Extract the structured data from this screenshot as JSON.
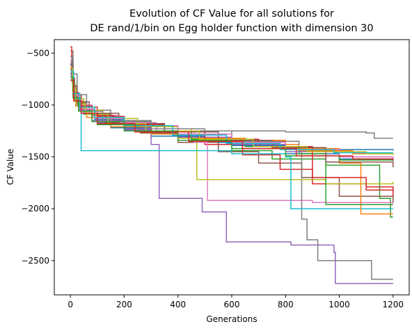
{
  "chart_data": {
    "type": "line",
    "title_line1": "Evolution of CF Value for all solutions for",
    "title_line2": "DE rand/1/bin on Egg holder function with dimension 30",
    "xlabel": "Generations",
    "ylabel": "CF Value",
    "xlim": [
      -60,
      1260
    ],
    "ylim": [
      -2830,
      -370
    ],
    "xticks": [
      0,
      200,
      400,
      600,
      800,
      1000,
      1200
    ],
    "yticks": [
      -2500,
      -2000,
      -1500,
      -1000,
      -500
    ],
    "grid": false,
    "series": [
      {
        "color": "#1f77b4",
        "points": [
          [
            0,
            -610
          ],
          [
            5,
            -760
          ],
          [
            12,
            -880
          ],
          [
            25,
            -1000
          ],
          [
            50,
            -1090
          ],
          [
            100,
            -1180
          ],
          [
            150,
            -1220
          ],
          [
            300,
            -1300
          ],
          [
            500,
            -1360
          ],
          [
            700,
            -1400
          ],
          [
            900,
            -1430
          ],
          [
            1200,
            -1440
          ]
        ]
      },
      {
        "color": "#ff7f0e",
        "points": [
          [
            0,
            -640
          ],
          [
            8,
            -820
          ],
          [
            20,
            -960
          ],
          [
            45,
            -1060
          ],
          [
            120,
            -1150
          ],
          [
            250,
            -1230
          ],
          [
            450,
            -1320
          ],
          [
            650,
            -1380
          ],
          [
            850,
            -1440
          ],
          [
            1050,
            -1470
          ],
          [
            1200,
            -1480
          ]
        ]
      },
      {
        "color": "#2ca02c",
        "points": [
          [
            0,
            -700
          ],
          [
            10,
            -880
          ],
          [
            30,
            -1000
          ],
          [
            60,
            -1090
          ],
          [
            150,
            -1160
          ],
          [
            300,
            -1260
          ],
          [
            450,
            -1350
          ],
          [
            600,
            -1440
          ],
          [
            750,
            -1520
          ],
          [
            950,
            -1580
          ],
          [
            1150,
            -1900
          ],
          [
            1190,
            -2080
          ],
          [
            1200,
            -2080
          ]
        ]
      },
      {
        "color": "#d62728",
        "points": [
          [
            0,
            -530
          ],
          [
            6,
            -740
          ],
          [
            15,
            -900
          ],
          [
            40,
            -1020
          ],
          [
            100,
            -1110
          ],
          [
            200,
            -1190
          ],
          [
            350,
            -1280
          ],
          [
            500,
            -1380
          ],
          [
            640,
            -1480
          ],
          [
            780,
            -1620
          ],
          [
            900,
            -1760
          ],
          [
            1100,
            -1820
          ],
          [
            1200,
            -1840
          ]
        ]
      },
      {
        "color": "#9467bd",
        "points": [
          [
            0,
            -600
          ],
          [
            10,
            -880
          ],
          [
            30,
            -1050
          ],
          [
            100,
            -1170
          ],
          [
            200,
            -1240
          ],
          [
            300,
            -1380
          ],
          [
            330,
            -1900
          ],
          [
            480,
            -1900
          ],
          [
            490,
            -2030
          ],
          [
            570,
            -2030
          ],
          [
            580,
            -2320
          ],
          [
            810,
            -2320
          ],
          [
            820,
            -2350
          ],
          [
            980,
            -2420
          ],
          [
            985,
            -2720
          ],
          [
            1200,
            -2720
          ]
        ]
      },
      {
        "color": "#8c564b",
        "points": [
          [
            0,
            -660
          ],
          [
            8,
            -840
          ],
          [
            25,
            -980
          ],
          [
            60,
            -1080
          ],
          [
            130,
            -1170
          ],
          [
            260,
            -1270
          ],
          [
            400,
            -1360
          ],
          [
            550,
            -1450
          ],
          [
            700,
            -1560
          ],
          [
            860,
            -1700
          ],
          [
            1000,
            -1880
          ],
          [
            1200,
            -1940
          ]
        ]
      },
      {
        "color": "#e377c2",
        "points": [
          [
            0,
            -690
          ],
          [
            10,
            -880
          ],
          [
            30,
            -1000
          ],
          [
            80,
            -1100
          ],
          [
            180,
            -1170
          ],
          [
            320,
            -1250
          ],
          [
            460,
            -1360
          ],
          [
            510,
            -1920
          ],
          [
            700,
            -1920
          ],
          [
            900,
            -1940
          ],
          [
            1200,
            -1950
          ]
        ]
      },
      {
        "color": "#7f7f7f",
        "points": [
          [
            0,
            -480
          ],
          [
            10,
            -700
          ],
          [
            25,
            -900
          ],
          [
            60,
            -1050
          ],
          [
            150,
            -1150
          ],
          [
            300,
            -1250
          ],
          [
            600,
            -1350
          ],
          [
            850,
            -1450
          ],
          [
            860,
            -2100
          ],
          [
            880,
            -2300
          ],
          [
            920,
            -2500
          ],
          [
            1100,
            -2500
          ],
          [
            1120,
            -2680
          ],
          [
            1200,
            -2680
          ]
        ]
      },
      {
        "color": "#bcbd22",
        "points": [
          [
            0,
            -620
          ],
          [
            8,
            -800
          ],
          [
            20,
            -940
          ],
          [
            50,
            -1050
          ],
          [
            120,
            -1130
          ],
          [
            250,
            -1210
          ],
          [
            400,
            -1320
          ],
          [
            470,
            -1720
          ],
          [
            700,
            -1720
          ],
          [
            950,
            -1760
          ],
          [
            1200,
            -1740
          ]
        ]
      },
      {
        "color": "#17becf",
        "points": [
          [
            0,
            -650
          ],
          [
            10,
            -820
          ],
          [
            25,
            -960
          ],
          [
            40,
            -1440
          ],
          [
            300,
            -1440
          ],
          [
            600,
            -1470
          ],
          [
            800,
            -1500
          ],
          [
            820,
            -2000
          ],
          [
            1000,
            -2000
          ],
          [
            1200,
            -2000
          ]
        ]
      },
      {
        "color": "#1f77b4",
        "points": [
          [
            0,
            -700
          ],
          [
            12,
            -900
          ],
          [
            35,
            -1040
          ],
          [
            90,
            -1140
          ],
          [
            200,
            -1230
          ],
          [
            400,
            -1310
          ],
          [
            600,
            -1390
          ],
          [
            800,
            -1470
          ],
          [
            1000,
            -1520
          ],
          [
            1200,
            -1530
          ]
        ]
      },
      {
        "color": "#ff7f0e",
        "points": [
          [
            0,
            -620
          ],
          [
            8,
            -860
          ],
          [
            20,
            -1010
          ],
          [
            60,
            -1120
          ],
          [
            150,
            -1210
          ],
          [
            300,
            -1280
          ],
          [
            500,
            -1340
          ],
          [
            800,
            -1420
          ],
          [
            1000,
            -1560
          ],
          [
            1080,
            -2050
          ],
          [
            1200,
            -2050
          ]
        ]
      },
      {
        "color": "#2ca02c",
        "points": [
          [
            0,
            -760
          ],
          [
            15,
            -960
          ],
          [
            40,
            -1080
          ],
          [
            100,
            -1190
          ],
          [
            250,
            -1260
          ],
          [
            450,
            -1330
          ],
          [
            650,
            -1400
          ],
          [
            850,
            -1470
          ],
          [
            950,
            -1960
          ],
          [
            1200,
            -1960
          ]
        ]
      },
      {
        "color": "#d62728",
        "points": [
          [
            0,
            -440
          ],
          [
            5,
            -720
          ],
          [
            10,
            -880
          ],
          [
            30,
            -1010
          ],
          [
            80,
            -1100
          ],
          [
            160,
            -1180
          ],
          [
            300,
            -1260
          ],
          [
            500,
            -1330
          ],
          [
            700,
            -1400
          ],
          [
            900,
            -1700
          ],
          [
            1100,
            -1790
          ],
          [
            1200,
            -1880
          ]
        ]
      },
      {
        "color": "#9467bd",
        "points": [
          [
            0,
            -720
          ],
          [
            10,
            -920
          ],
          [
            30,
            -1050
          ],
          [
            80,
            -1150
          ],
          [
            200,
            -1230
          ],
          [
            400,
            -1310
          ],
          [
            600,
            -1380
          ],
          [
            800,
            -1450
          ],
          [
            1000,
            -1500
          ],
          [
            1200,
            -1510
          ]
        ]
      },
      {
        "color": "#8c564b",
        "points": [
          [
            0,
            -580
          ],
          [
            8,
            -820
          ],
          [
            25,
            -970
          ],
          [
            70,
            -1080
          ],
          [
            180,
            -1180
          ],
          [
            350,
            -1260
          ],
          [
            550,
            -1340
          ],
          [
            750,
            -1410
          ],
          [
            950,
            -1550
          ],
          [
            1200,
            -1600
          ]
        ]
      },
      {
        "color": "#e377c2",
        "points": [
          [
            0,
            -690
          ],
          [
            10,
            -900
          ],
          [
            30,
            -1040
          ],
          [
            90,
            -1130
          ],
          [
            200,
            -1200
          ],
          [
            400,
            -1280
          ],
          [
            600,
            -1360
          ],
          [
            800,
            -1430
          ],
          [
            1000,
            -1500
          ],
          [
            1200,
            -1550
          ]
        ]
      },
      {
        "color": "#7f7f7f",
        "points": [
          [
            0,
            -530
          ],
          [
            6,
            -780
          ],
          [
            15,
            -940
          ],
          [
            40,
            -1060
          ],
          [
            120,
            -1160
          ],
          [
            300,
            -1230
          ],
          [
            500,
            -1250
          ],
          [
            800,
            -1260
          ],
          [
            1100,
            -1270
          ],
          [
            1130,
            -1320
          ],
          [
            1200,
            -1320
          ]
        ]
      },
      {
        "color": "#bcbd22",
        "points": [
          [
            0,
            -650
          ],
          [
            8,
            -850
          ],
          [
            20,
            -990
          ],
          [
            55,
            -1090
          ],
          [
            140,
            -1180
          ],
          [
            280,
            -1250
          ],
          [
            480,
            -1330
          ],
          [
            680,
            -1400
          ],
          [
            880,
            -1450
          ],
          [
            1100,
            -1470
          ],
          [
            1200,
            -1480
          ]
        ]
      },
      {
        "color": "#17becf",
        "points": [
          [
            0,
            -680
          ],
          [
            12,
            -890
          ],
          [
            35,
            -1020
          ],
          [
            90,
            -1120
          ],
          [
            200,
            -1200
          ],
          [
            380,
            -1290
          ],
          [
            580,
            -1370
          ],
          [
            780,
            -1430
          ],
          [
            980,
            -1460
          ],
          [
            1200,
            -1460
          ]
        ]
      },
      {
        "color": "#2ca02c",
        "points": [
          [
            0,
            -730
          ],
          [
            10,
            -930
          ],
          [
            30,
            -1060
          ],
          [
            80,
            -1160
          ],
          [
            200,
            -1250
          ],
          [
            400,
            -1340
          ],
          [
            600,
            -1420
          ],
          [
            800,
            -1490
          ],
          [
            1000,
            -1530
          ],
          [
            1200,
            -1540
          ]
        ]
      },
      {
        "color": "#d62728",
        "points": [
          [
            0,
            -760
          ],
          [
            12,
            -960
          ],
          [
            40,
            -1080
          ],
          [
            100,
            -1180
          ],
          [
            240,
            -1260
          ],
          [
            440,
            -1350
          ],
          [
            640,
            -1420
          ],
          [
            840,
            -1490
          ],
          [
            1050,
            -1520
          ],
          [
            1200,
            -1530
          ]
        ]
      }
    ]
  }
}
